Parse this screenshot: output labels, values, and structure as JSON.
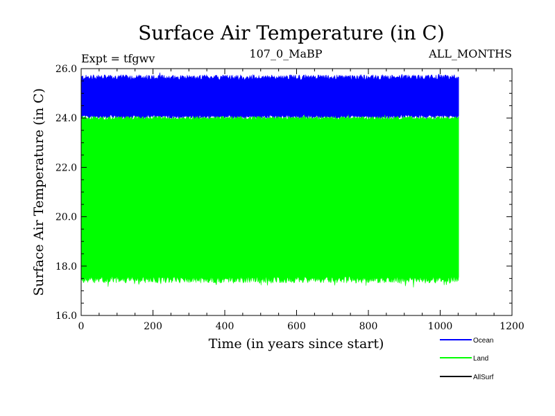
{
  "chart_data": {
    "type": "area",
    "title": "Surface Air Temperature (in C)",
    "subtitle_left": "Expt = tfgwv",
    "subtitle_center": "107_0_MaBP",
    "subtitle_right": "ALL_MONTHS",
    "xlabel": "Time (in years since start)",
    "ylabel": "Surface Air Temperature (in C)",
    "xlim": [
      0,
      1200
    ],
    "ylim": [
      16.0,
      26.0
    ],
    "x_ticks": [
      0,
      200,
      400,
      600,
      800,
      1000,
      1200
    ],
    "x_tick_labels": [
      "0",
      "200",
      "400",
      "600",
      "800",
      "1000",
      "1200"
    ],
    "y_ticks": [
      16.0,
      18.0,
      20.0,
      22.0,
      24.0,
      26.0
    ],
    "y_tick_labels": [
      "16.0",
      "18.0",
      "20.0",
      "22.0",
      "24.0",
      "26.0"
    ],
    "x_range_data": [
      0,
      1052
    ],
    "series": [
      {
        "name": "Ocean",
        "color": "#0000ff",
        "description": "monthly values, upper band",
        "min_approx": 24.0,
        "max_approx": 25.8,
        "mean_low": 24.05,
        "mean_high": 25.65
      },
      {
        "name": "Land",
        "color": "#00ff00",
        "description": "monthly values, lower band",
        "min_approx": 17.3,
        "max_approx": 24.1,
        "mean_low": 17.45,
        "mean_high": 24.0
      },
      {
        "name": "AllSurf",
        "color": "#000000",
        "description": "legend entry only"
      }
    ],
    "legend": {
      "position": "bottom-right",
      "entries": [
        "Ocean",
        "Land",
        "AllSurf"
      ]
    },
    "grid": false
  }
}
